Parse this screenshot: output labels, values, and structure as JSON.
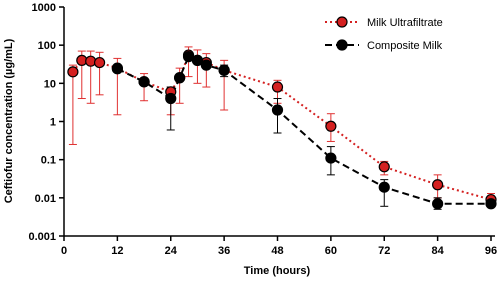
{
  "chart_data": {
    "type": "line",
    "xlabel": "Time (hours)",
    "ylabel": "Ceftiofur concentration (µg/mL)",
    "xlim": [
      0,
      96
    ],
    "xticks": [
      0,
      12,
      24,
      36,
      48,
      60,
      72,
      84,
      96
    ],
    "ylim": [
      0.001,
      1000
    ],
    "yticks": [
      0.001,
      0.01,
      0.1,
      1,
      10,
      100,
      1000
    ],
    "yscale": "log",
    "legend": "upper right",
    "series": [
      {
        "name": "Milk Ultrafiltrate",
        "color": "#d42020",
        "line_style": "dotted",
        "x": [
          2,
          4,
          6,
          8,
          12,
          18,
          24,
          26,
          28,
          30,
          32,
          36,
          48,
          60,
          72,
          84,
          96
        ],
        "values": [
          20,
          40,
          38,
          35,
          25,
          11,
          6,
          14,
          55,
          40,
          35,
          22,
          8,
          0.75,
          0.065,
          0.022,
          0.009
        ],
        "lower": [
          0.25,
          4,
          3,
          5,
          1.5,
          3.5,
          1.5,
          3,
          15,
          10,
          8,
          2,
          3,
          0.3,
          0.04,
          0.01,
          0.006
        ],
        "upper": [
          30,
          70,
          70,
          65,
          45,
          18,
          8,
          25,
          90,
          75,
          60,
          40,
          12,
          1.6,
          0.09,
          0.04,
          0.013
        ]
      },
      {
        "name": "Composite Milk",
        "color": "#000000",
        "line_style": "dashed",
        "x": [
          12,
          18,
          24,
          26,
          28,
          30,
          32,
          36,
          48,
          60,
          72,
          84,
          96
        ],
        "values": [
          24,
          11,
          4,
          14,
          50,
          40,
          30,
          22,
          2,
          0.11,
          0.019,
          0.007,
          0.007
        ],
        "lower": [
          null,
          null,
          0.6,
          null,
          null,
          null,
          null,
          15,
          0.5,
          0.04,
          0.006,
          0.005,
          0.006
        ],
        "upper": [
          null,
          null,
          8,
          null,
          null,
          null,
          null,
          30,
          4,
          0.22,
          0.03,
          0.01,
          0.009
        ]
      }
    ]
  }
}
